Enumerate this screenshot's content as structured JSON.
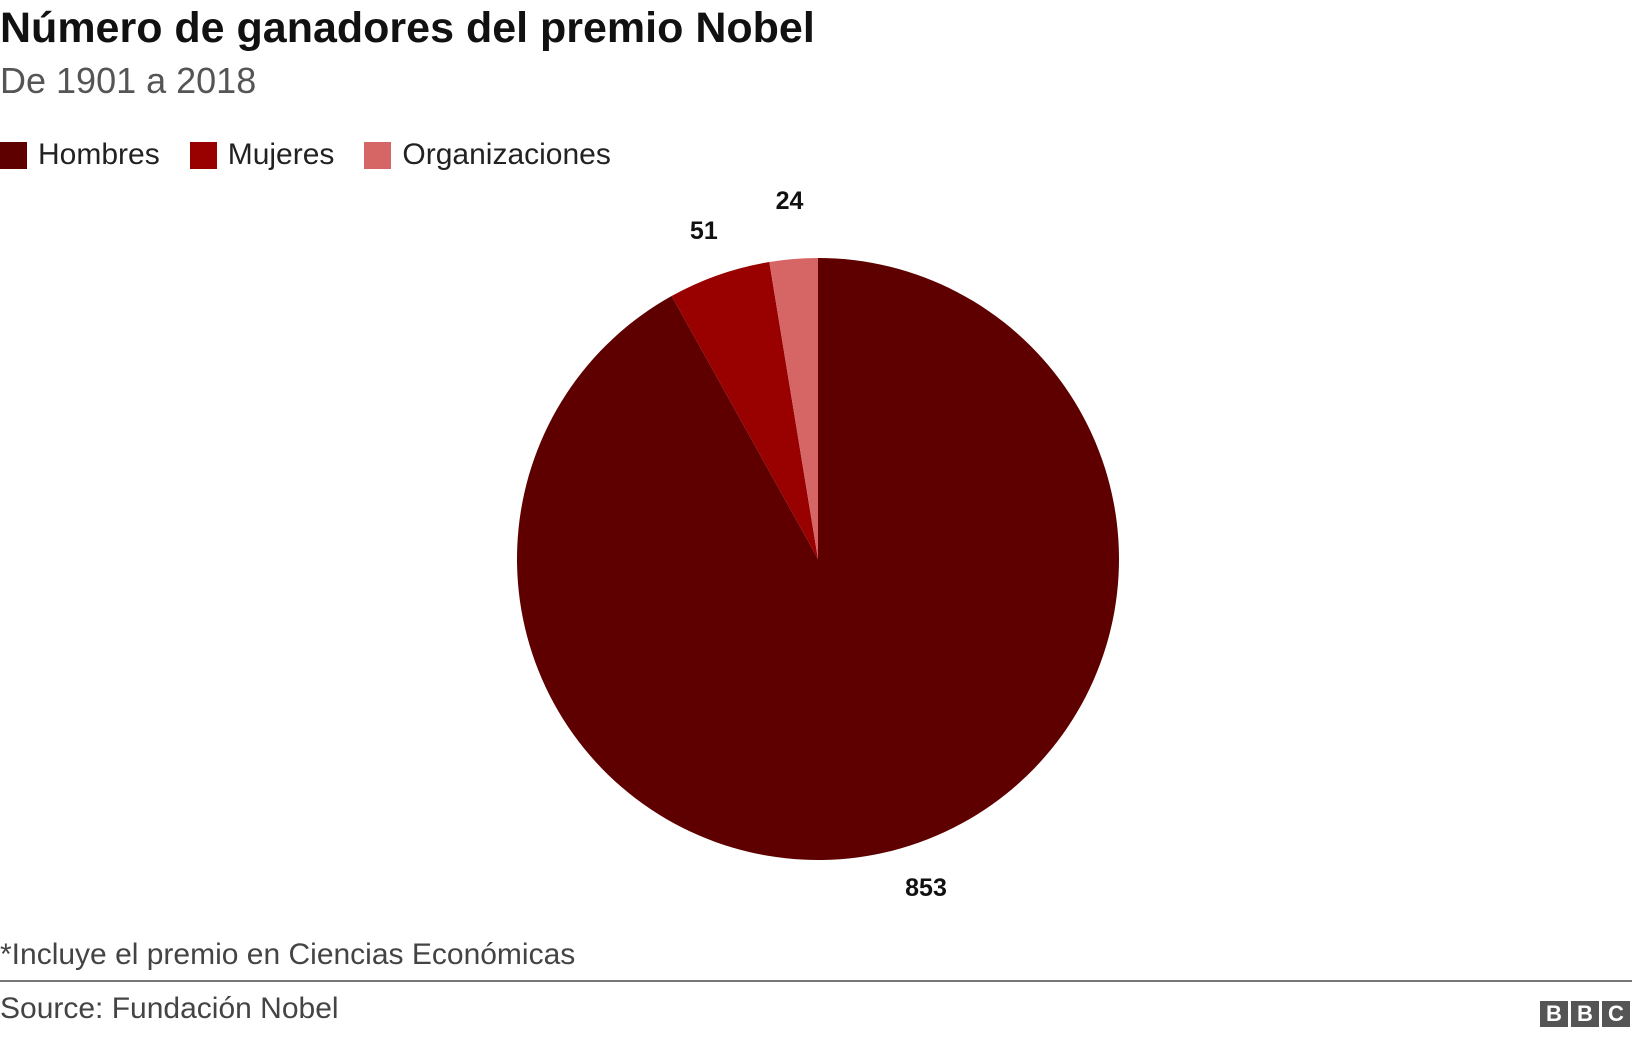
{
  "chart_data": {
    "type": "pie",
    "title": "Número de ganadores del premio Nobel",
    "subtitle": "De 1901 a 2018",
    "categories": [
      "Hombres",
      "Mujeres",
      "Organizaciones"
    ],
    "values": [
      853,
      51,
      24
    ],
    "colors": [
      "#5e0000",
      "#990000",
      "#d66666"
    ],
    "legend_position": "top-left",
    "footnote": "*Incluye el premio en Ciencias Económicas",
    "source": "Source: Fundación Nobel"
  },
  "logo": "BBC"
}
